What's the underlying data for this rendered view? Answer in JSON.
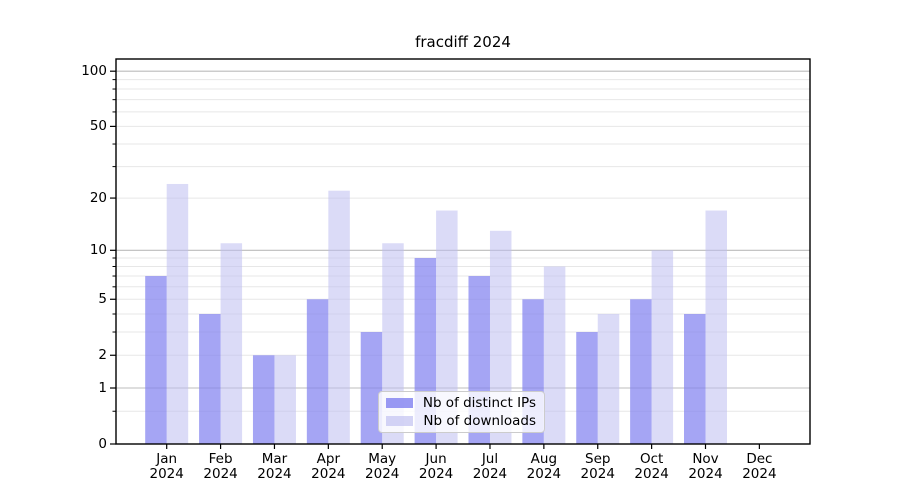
{
  "title": "fracdiff 2024",
  "chart_data": {
    "type": "bar",
    "title": "fracdiff 2024",
    "categories": [
      "Jan",
      "Feb",
      "Mar",
      "Apr",
      "May",
      "Jun",
      "Jul",
      "Aug",
      "Sep",
      "Oct",
      "Nov",
      "Dec"
    ],
    "category_year": "2024",
    "series": [
      {
        "name": "Nb of distinct IPs",
        "values": [
          7,
          4,
          2,
          5,
          3,
          9,
          7,
          5,
          3,
          5,
          4,
          0
        ],
        "color": "#8282f0",
        "opacity": 0.72
      },
      {
        "name": "Nb of downloads",
        "values": [
          24,
          11,
          2,
          22,
          11,
          17,
          13,
          8,
          4,
          10,
          17,
          0
        ],
        "color": "#bdbdf0",
        "opacity": 0.55
      }
    ],
    "xlabel": "",
    "ylabel": "",
    "yscale": "log1p",
    "ylim": [
      0,
      116
    ],
    "yticks": [
      0,
      1,
      2,
      5,
      10,
      20,
      50,
      100
    ],
    "major_gridlines": [
      1,
      10,
      100
    ],
    "minor_gridlines": [
      0.5,
      2,
      3,
      4,
      5,
      6,
      7,
      8,
      9,
      20,
      30,
      40,
      50,
      60,
      70,
      80,
      90
    ],
    "grid_color_major": "#bcbcbc",
    "grid_color_minor": "#e7e7e7",
    "legend_position": "lower center"
  }
}
